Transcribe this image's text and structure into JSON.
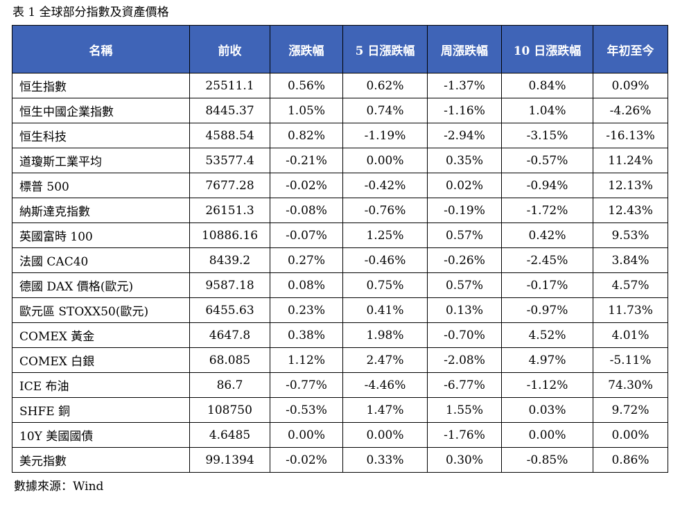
{
  "caption": "表 1 全球部分指數及資產價格",
  "table": {
    "headers": [
      "名稱",
      "前收",
      "漲跌幅",
      "5 日漲跌幅",
      "周漲跌幅",
      "10 日漲跌幅",
      "年初至今"
    ],
    "header_bg": "#3F64B7",
    "rows": [
      [
        "恒生指數",
        "25511.1",
        "0.56%",
        "0.62%",
        "-1.37%",
        "0.84%",
        "0.09%"
      ],
      [
        "恒生中國企業指數",
        "8445.37",
        "1.05%",
        "0.74%",
        "-1.16%",
        "1.04%",
        "-4.26%"
      ],
      [
        "恒生科技",
        "4588.54",
        "0.82%",
        "-1.19%",
        "-2.94%",
        "-3.15%",
        "-16.13%"
      ],
      [
        "道瓊斯工業平均",
        "53577.4",
        "-0.21%",
        "0.00%",
        "0.35%",
        "-0.57%",
        "11.24%"
      ],
      [
        "標普 500",
        "7677.28",
        "-0.02%",
        "-0.42%",
        "0.02%",
        "-0.94%",
        "12.13%"
      ],
      [
        "納斯達克指數",
        "26151.3",
        "-0.08%",
        "-0.76%",
        "-0.19%",
        "-1.72%",
        "12.43%"
      ],
      [
        "英國富時 100",
        "10886.16",
        "-0.07%",
        "1.25%",
        "0.57%",
        "0.42%",
        "9.53%"
      ],
      [
        "法國 CAC40",
        "8439.2",
        "0.27%",
        "-0.46%",
        "-0.26%",
        "-2.45%",
        "3.84%"
      ],
      [
        "德國 DAX 價格(歐元)",
        "9587.18",
        "0.08%",
        "0.75%",
        "0.57%",
        "-0.17%",
        "4.57%"
      ],
      [
        "歐元區 STOXX50(歐元)",
        "6455.63",
        "0.23%",
        "0.41%",
        "0.13%",
        "-0.97%",
        "11.73%"
      ],
      [
        "COMEX 黃金",
        "4647.8",
        "0.38%",
        "1.98%",
        "-0.70%",
        "4.52%",
        "4.01%"
      ],
      [
        "COMEX 白銀",
        "68.085",
        "1.12%",
        "2.47%",
        "-2.08%",
        "4.97%",
        "-5.11%"
      ],
      [
        "ICE 布油",
        "86.7",
        "-0.77%",
        "-4.46%",
        "-6.77%",
        "-1.12%",
        "74.30%"
      ],
      [
        "SHFE 銅",
        "108750",
        "-0.53%",
        "1.47%",
        "1.55%",
        "0.03%",
        "9.72%"
      ],
      [
        "10Y 美國國債",
        "4.6485",
        "0.00%",
        "0.00%",
        "-1.76%",
        "0.00%",
        "0.00%"
      ],
      [
        "美元指數",
        "99.1394",
        "-0.02%",
        "0.33%",
        "0.30%",
        "-0.85%",
        "0.86%"
      ]
    ]
  },
  "source": "數據來源：Wind"
}
